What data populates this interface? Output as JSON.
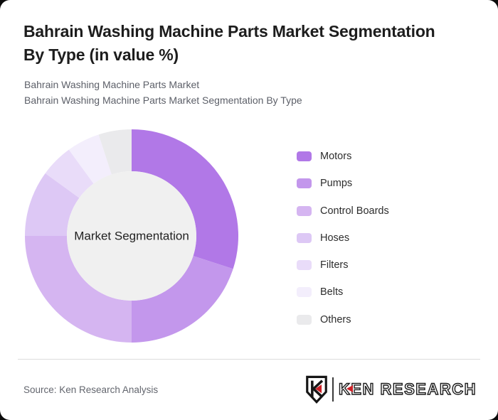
{
  "window": {
    "background": "#0b0b0b",
    "card_background": "#ffffff"
  },
  "header": {
    "title": "Bahrain Washing Machine Parts Market Segmentation By Type (in value %)",
    "title_lines": [
      "Bahrain Washing Machine Parts Market Segmentation",
      "By Type (in value %)"
    ],
    "subtitle_lines": [
      "Bahrain Washing Machine Parts Market",
      "Bahrain Washing Machine Parts Market Segmentation By Type"
    ]
  },
  "chart_data": {
    "type": "pie",
    "variant": "donut",
    "title": "Bahrain Washing Machine Parts Market Segmentation By Type (in value %)",
    "units": "value %",
    "center_label": "Market Segmentation",
    "legend_position": "right",
    "direction": "clockwise",
    "start_angle_deg": 0,
    "inner_radius_ratio": 0.61,
    "hole_color": "#f0f0f0",
    "segments": [
      {
        "label": "Motors",
        "value": 30,
        "color": "#b178e7"
      },
      {
        "label": "Pumps",
        "value": 20,
        "color": "#c397ec"
      },
      {
        "label": "Control Boards",
        "value": 25,
        "color": "#d5b5f1"
      },
      {
        "label": "Hoses",
        "value": 10,
        "color": "#ddc8f5"
      },
      {
        "label": "Filters",
        "value": 5,
        "color": "#e9dcf9"
      },
      {
        "label": "Belts",
        "value": 5,
        "color": "#f3eefc"
      },
      {
        "label": "Others",
        "value": 5,
        "color": "#eaeaec"
      }
    ]
  },
  "footer": {
    "source_text": "Source: Ken Research Analysis",
    "logo": {
      "text": "KEN RESEARCH",
      "accent_color": "#cb2026"
    }
  }
}
